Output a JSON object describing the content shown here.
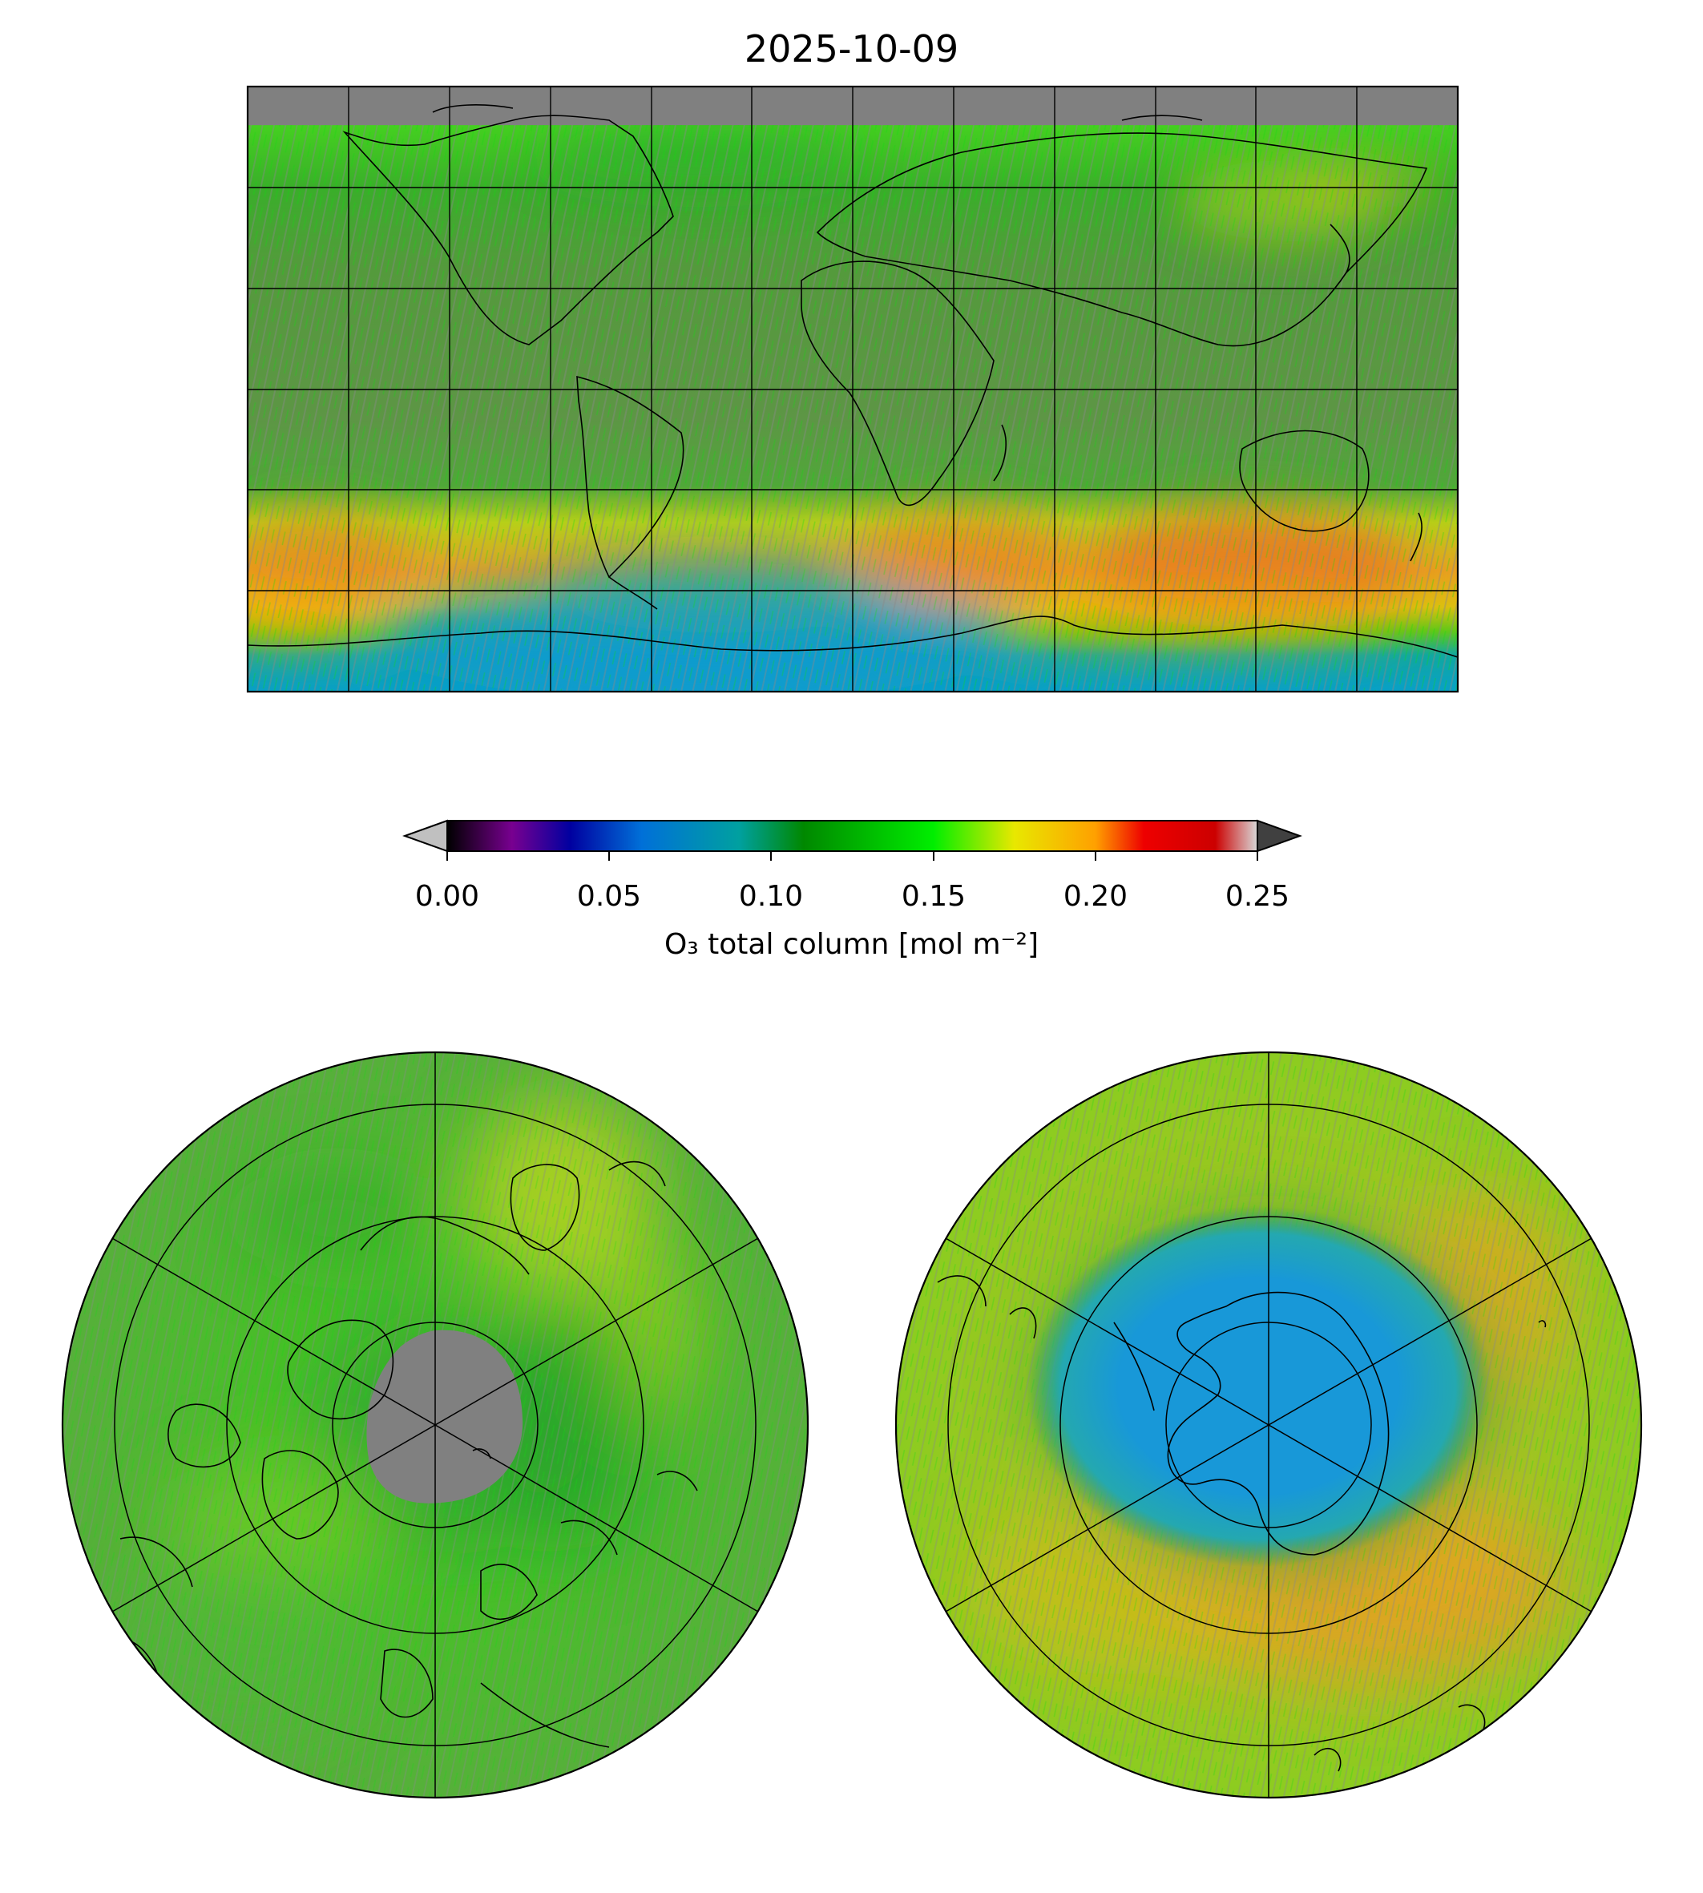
{
  "title": "2025-10-09",
  "colorbar": {
    "label": "O₃ total column [mol m⁻²]",
    "ticks": [
      "0.00",
      "0.05",
      "0.10",
      "0.15",
      "0.20",
      "0.25"
    ],
    "min": 0.0,
    "max": 0.25,
    "extend": "both",
    "under_color": "#c0c0c0",
    "over_color": "#404040",
    "stops": [
      {
        "value": 0.0,
        "color": "#000000"
      },
      {
        "value": 0.02,
        "color": "#780090"
      },
      {
        "value": 0.038,
        "color": "#0000a0"
      },
      {
        "value": 0.06,
        "color": "#0070d8"
      },
      {
        "value": 0.09,
        "color": "#00a0a0"
      },
      {
        "value": 0.11,
        "color": "#008800"
      },
      {
        "value": 0.15,
        "color": "#00ee00"
      },
      {
        "value": 0.175,
        "color": "#e8e800"
      },
      {
        "value": 0.2,
        "color": "#ffa000"
      },
      {
        "value": 0.215,
        "color": "#ee0000"
      },
      {
        "value": 0.237,
        "color": "#cc0000"
      },
      {
        "value": 0.25,
        "color": "#d8d8d8"
      }
    ]
  },
  "panels": [
    {
      "name": "global-map",
      "projection": "plate-carree",
      "missing_color": "#808080"
    },
    {
      "name": "north-polar-map",
      "projection": "north-polar-stereographic",
      "missing_color": "#808080"
    },
    {
      "name": "south-polar-map",
      "projection": "south-polar-stereographic",
      "missing_color": "#808080"
    }
  ]
}
